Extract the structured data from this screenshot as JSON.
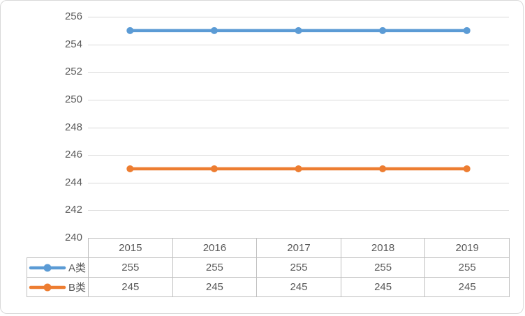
{
  "chart_data": {
    "type": "line",
    "title": "",
    "categories": [
      "2015",
      "2016",
      "2017",
      "2018",
      "2019"
    ],
    "series": [
      {
        "name": "A类",
        "color": "#5B9BD5",
        "values": [
          255,
          255,
          255,
          255,
          255
        ]
      },
      {
        "name": "B类",
        "color": "#ED7D31",
        "values": [
          245,
          245,
          245,
          245,
          245
        ]
      }
    ],
    "ylim": [
      240,
      256
    ],
    "yticks": [
      256,
      254,
      252,
      250,
      248,
      246,
      244,
      242,
      240
    ],
    "xlabel": "",
    "ylabel": "",
    "grid": true,
    "marker": "circle",
    "legend_position": "left-of-data-table",
    "data_table_shown": true
  },
  "colors": {
    "gridline": "#D9D9D9",
    "frame_border": "#D9D9D9",
    "table_border": "#BFBFBF",
    "text": "#595959",
    "background": "#FFFFFF"
  }
}
